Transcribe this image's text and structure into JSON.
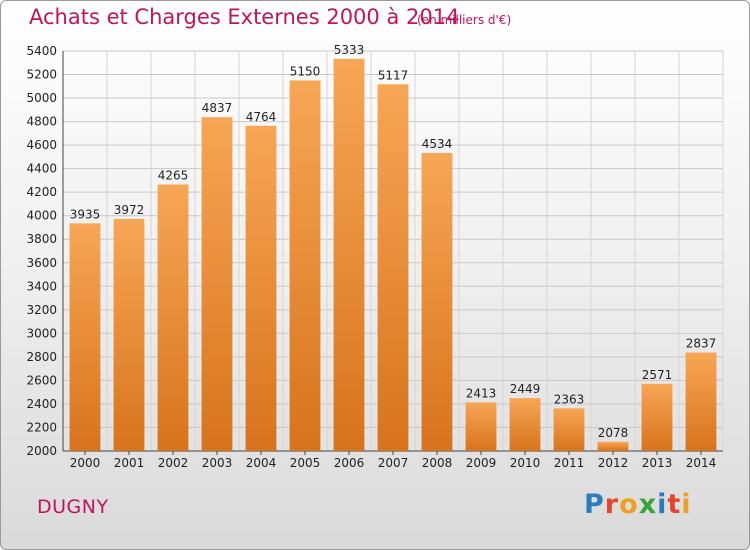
{
  "title": "Achats et Charges Externes 2000 à 2014",
  "subtitle": "(en milliers d'€)",
  "commune": "DUGNY",
  "logo": {
    "letters": [
      "P",
      "r",
      "o",
      "x",
      "i",
      "t",
      "i"
    ],
    "colors": [
      "#2b7bbf",
      "#e8442a",
      "#f0a020",
      "#3aa23a",
      "#2b7bbf",
      "#e8442a",
      "#f0a020"
    ]
  },
  "colors": {
    "bar_top": "#f7a655",
    "bar_bottom": "#d8731c",
    "accent": "#c0145c"
  },
  "chart_data": {
    "type": "bar",
    "title": "Achats et Charges Externes 2000 à 2014",
    "categories": [
      "2000",
      "2001",
      "2002",
      "2003",
      "2004",
      "2005",
      "2006",
      "2007",
      "2008",
      "2009",
      "2010",
      "2011",
      "2012",
      "2013",
      "2014"
    ],
    "values": [
      3935,
      3972,
      4265,
      4837,
      4764,
      5150,
      5333,
      5117,
      4534,
      2413,
      2449,
      2363,
      2078,
      2571,
      2837
    ],
    "ylim": [
      2000,
      5400
    ],
    "yticks": [
      2000,
      2200,
      2400,
      2600,
      2800,
      3000,
      3200,
      3400,
      3600,
      3800,
      4000,
      4200,
      4400,
      4600,
      4800,
      5000,
      5200,
      5400
    ],
    "grid": true
  }
}
